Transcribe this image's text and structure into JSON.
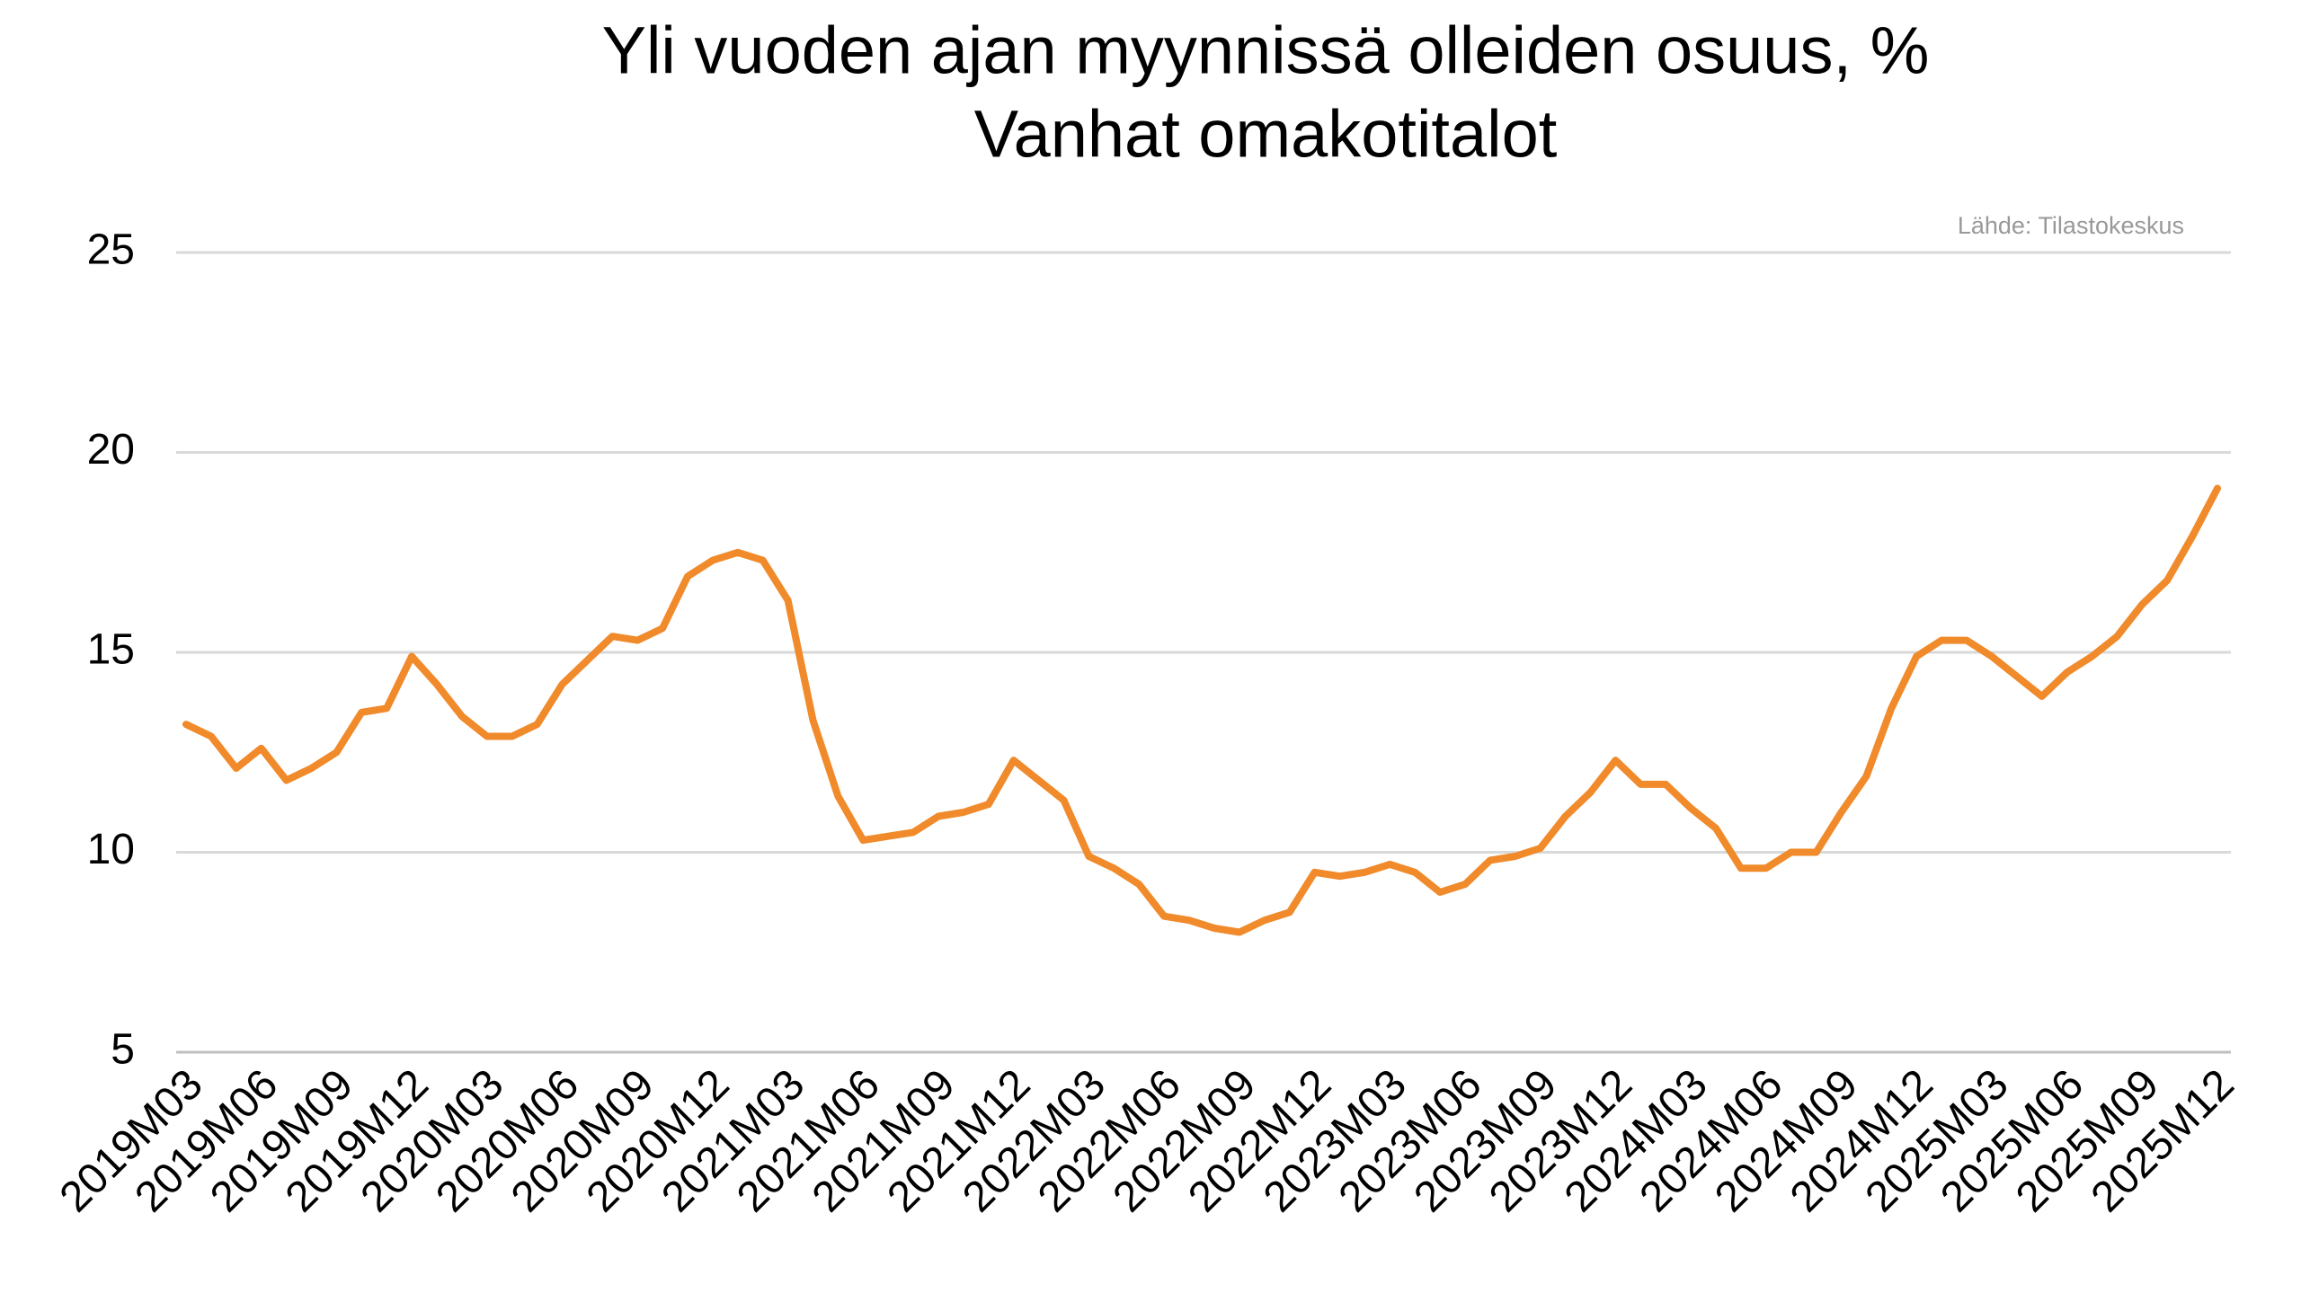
{
  "chart_data": {
    "type": "line",
    "title": "Yli vuoden ajan myynnissä olleiden osuus, %",
    "subtitle": "Vanhat omakotitalot",
    "source": "Lähde: Tilastokeskus",
    "categories": [
      "2019M03",
      null,
      null,
      "2019M06",
      null,
      null,
      "2019M09",
      null,
      null,
      "2019M12",
      null,
      null,
      "2020M03",
      null,
      null,
      "2020M06",
      null,
      null,
      "2020M09",
      null,
      null,
      "2020M12",
      null,
      null,
      "2021M03",
      null,
      null,
      "2021M06",
      null,
      null,
      "2021M09",
      null,
      null,
      "2021M12",
      null,
      null,
      "2022M03",
      null,
      null,
      "2022M06",
      null,
      null,
      "2022M09",
      null,
      null,
      "2022M12",
      null,
      null,
      "2023M03",
      null,
      null,
      "2023M06",
      null,
      null,
      "2023M09",
      null,
      null,
      "2023M12",
      null,
      null,
      "2024M03",
      null,
      null,
      "2024M06",
      null,
      null,
      "2024M09",
      null,
      null,
      "2024M12",
      null,
      null,
      "2025M03",
      null,
      null,
      "2025M06",
      null,
      null,
      "2025M09",
      null,
      null,
      "2025M12"
    ],
    "series": [
      {
        "color": "#f08a2b",
        "values": [
          13.2,
          12.9,
          12.1,
          12.6,
          11.8,
          12.1,
          12.5,
          13.5,
          13.6,
          14.9,
          14.2,
          13.4,
          12.9,
          12.9,
          13.2,
          14.2,
          14.8,
          15.4,
          15.3,
          15.6,
          16.9,
          17.3,
          17.5,
          17.3,
          16.3,
          13.3,
          11.4,
          10.3,
          10.4,
          10.5,
          10.9,
          11.0,
          11.2,
          12.3,
          11.8,
          11.3,
          9.9,
          9.6,
          9.2,
          8.4,
          8.3,
          8.1,
          8.0,
          8.3,
          8.5,
          9.5,
          9.4,
          9.5,
          9.7,
          9.5,
          9.0,
          9.2,
          9.8,
          9.9,
          10.1,
          10.9,
          11.5,
          12.3,
          11.7,
          11.7,
          11.1,
          10.6,
          9.6,
          9.6,
          10.0,
          10.0,
          11.0,
          11.9,
          13.6,
          14.9,
          15.3,
          15.3,
          14.9,
          14.4,
          13.9,
          14.5,
          14.9,
          15.4,
          16.2,
          16.8,
          17.9,
          19.1
        ]
      }
    ],
    "ylim": [
      5,
      25
    ],
    "yticks": [
      5,
      10,
      15,
      20,
      25
    ],
    "grid": true
  }
}
